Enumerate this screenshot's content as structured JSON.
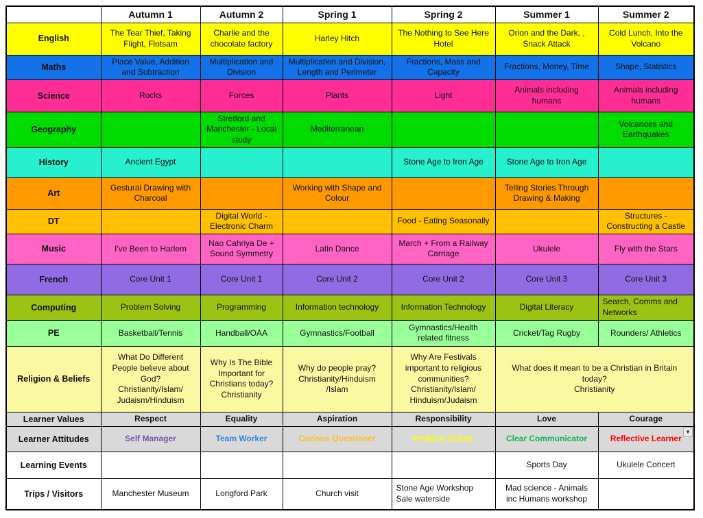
{
  "table": {
    "columns": [
      "",
      "Autumn 1",
      "Autumn 2",
      "Spring 1",
      "Spring 2",
      "Summer 1",
      "Summer 2"
    ],
    "column_keys": [
      "autumn-1",
      "autumn-2",
      "spring-1",
      "spring-2",
      "summer-1",
      "summer-2"
    ],
    "rows": [
      {
        "key": "english",
        "label": "English",
        "bg": "#FFFF00",
        "cells": [
          {
            "text": "The Tear Thief, Taking Flight, Flotsam"
          },
          {
            "text": "Charlie and the chocolate factory"
          },
          {
            "text": "Harley Hitch"
          },
          {
            "text": "The Nothing to See Here Hotel"
          },
          {
            "text": "Orion and the Dark, , Snack Attack"
          },
          {
            "text": "Cold Lunch, Into the Volcano"
          }
        ]
      },
      {
        "key": "maths",
        "label": "Maths",
        "bg": "#1372E8",
        "cells": [
          {
            "text": "Place Value, Addition and Subtraction"
          },
          {
            "text": "Multiplication and Division"
          },
          {
            "text": "Multiplication and Division, Length and Perimeter"
          },
          {
            "text": "Fractions, Mass and Capacity"
          },
          {
            "text": "Fractions, Money, Time"
          },
          {
            "text": "Shape, Statistics"
          }
        ]
      },
      {
        "key": "science",
        "label": "Science",
        "bg": "#FF2D96",
        "cells": [
          {
            "text": "Rocks"
          },
          {
            "text": "Forces"
          },
          {
            "text": "Plants"
          },
          {
            "text": "Light"
          },
          {
            "text": "Animals including humans"
          },
          {
            "text": "Animals including humans"
          }
        ]
      },
      {
        "key": "geography",
        "label": "Geography",
        "bg": "#00DB00",
        "cells": [
          {
            "text": ""
          },
          {
            "text": "Stretford and Manchester - Local study"
          },
          {
            "text": "Mediterranean"
          },
          {
            "text": ""
          },
          {
            "text": ""
          },
          {
            "text": "Volcanoes and Earthquakes"
          }
        ]
      },
      {
        "key": "history",
        "label": "History",
        "bg": "#26F0CE",
        "cells": [
          {
            "text": "Ancient Egypt"
          },
          {
            "text": ""
          },
          {
            "text": ""
          },
          {
            "text": "Stone Age to Iron Age"
          },
          {
            "text": "Stone Age to Iron Age"
          },
          {
            "text": ""
          }
        ]
      },
      {
        "key": "art",
        "label": "Art",
        "bg": "#FF9900",
        "cells": [
          {
            "text": "Gestural Drawing with Charcoal"
          },
          {
            "text": ""
          },
          {
            "text": "Working with Shape and Colour"
          },
          {
            "text": ""
          },
          {
            "text": "Telling Stories Through Drawing & Making"
          },
          {
            "text": ""
          }
        ]
      },
      {
        "key": "dt",
        "label": "DT",
        "bg": "#FFC000",
        "cells": [
          {
            "text": ""
          },
          {
            "text": "Digital World - Electronic Charm"
          },
          {
            "text": ""
          },
          {
            "text": "Food - Eating Seasonally"
          },
          {
            "text": ""
          },
          {
            "text": "Structures - Constructing a Castle"
          }
        ]
      },
      {
        "key": "music",
        "label": "Music",
        "bg": "#FF63C4",
        "cells": [
          {
            "text": "I've Been to Harlem"
          },
          {
            "text": "Nao Cahriya De + Sound Symmetry"
          },
          {
            "text": "Latin Dance"
          },
          {
            "text": "March + From a Railway Carriage"
          },
          {
            "text": "Ukulele"
          },
          {
            "text": "Fly with the Stars"
          }
        ]
      },
      {
        "key": "french",
        "label": "French",
        "bg": "#906BE4",
        "cells": [
          {
            "text": "Core Unit 1"
          },
          {
            "text": "Core Unit 1"
          },
          {
            "text": "Core Unit 2"
          },
          {
            "text": "Core Unit 2"
          },
          {
            "text": "Core Unit 3"
          },
          {
            "text": "Core Unit 3"
          }
        ]
      },
      {
        "key": "computing",
        "label": "Computing",
        "bg": "#9CC313",
        "cells": [
          {
            "text": "Problem Solving"
          },
          {
            "text": "Programming"
          },
          {
            "text": "Information technology"
          },
          {
            "text": "Information Technology"
          },
          {
            "text": "Digital Literacy"
          },
          {
            "text": "Search, Comms and Networks",
            "align": "left"
          }
        ]
      },
      {
        "key": "pe",
        "label": "PE",
        "bg": "#99FF99",
        "cells": [
          {
            "text": "Basketball/Tennis"
          },
          {
            "text": "Handball/OAA"
          },
          {
            "text": "Gymnastics/Football"
          },
          {
            "text": "Gymnastics/Health related fitness"
          },
          {
            "text": "Cricket/Tag Rugby"
          },
          {
            "text": "Rounders/ Athletics"
          }
        ]
      },
      {
        "key": "religion-beliefs",
        "label": "Religion & Beliefs",
        "bg": "#FBF8A2",
        "cells": [
          {
            "text": "What Do Different People believe about God?\nChristianity/Islam/\nJudaism/Hinduism"
          },
          {
            "text": "Why Is The Bible Important for Christians today?\nChristianity"
          },
          {
            "text": "Why do people pray?\nChristianity/Hinduism\n/Islam"
          },
          {
            "text": "Why Are Festivals important to religious communities?\nChristianity/Islam/\nHinduism/Judaism"
          },
          {
            "text": "What does it mean to be a Christian in Britain today?\nChristianity",
            "colspan": 2
          }
        ]
      },
      {
        "key": "learner-values",
        "label": "Learner Values",
        "bg": "#D9D9D9",
        "bold": true,
        "cells": [
          {
            "text": "Respect"
          },
          {
            "text": "Equality"
          },
          {
            "text": "Aspiration"
          },
          {
            "text": "Responsibility"
          },
          {
            "text": "Love"
          },
          {
            "text": "Courage"
          }
        ]
      },
      {
        "key": "learner-attitudes",
        "label": "Learner Attitudes",
        "bg": "#D9D9D9",
        "bold": true,
        "cells": [
          {
            "text": "Self Manager",
            "color": "#7A52A8"
          },
          {
            "text": "Team Worker",
            "color": "#2E86E0"
          },
          {
            "text": "Curious Questioner",
            "color": "#FFC01E"
          },
          {
            "text": "Problem Solver",
            "color": "#FFFF00"
          },
          {
            "text": "Clear Communicator",
            "color": "#16B153"
          },
          {
            "text": "Reflective Learner",
            "color": "#FF0000",
            "dropdown": true
          }
        ]
      },
      {
        "key": "learning-events",
        "label": "Learning Events",
        "bg": "#FFFFFF",
        "cells": [
          {
            "text": ""
          },
          {
            "text": ""
          },
          {
            "text": ""
          },
          {
            "text": ""
          },
          {
            "text": "Sports Day"
          },
          {
            "text": "Ukulele Concert"
          }
        ]
      },
      {
        "key": "trips-visitors",
        "label": "Trips / Visitors",
        "bg": "#FFFFFF",
        "cells": [
          {
            "text": "Manchester  Museum"
          },
          {
            "text": "Longford Park"
          },
          {
            "text": "Church visit"
          },
          {
            "text": "Stone Age Workshop\nSale waterside",
            "align": "left"
          },
          {
            "text": "Mad science - Animals inc Humans workshop"
          },
          {
            "text": ""
          }
        ]
      }
    ]
  },
  "icons": {
    "dropdown_arrow": "▼"
  }
}
